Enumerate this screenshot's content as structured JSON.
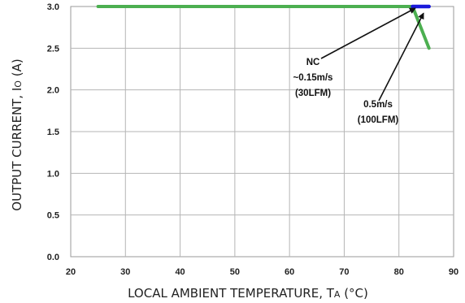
{
  "chart_data": {
    "type": "line",
    "xlabel_main": "LOCAL AMBIENT TEMPERATURE, T",
    "xlabel_sub": "A",
    "xlabel_unit": " (°C)",
    "ylabel_main": "OUTPUT CURRENT, I",
    "ylabel_sub": "O",
    "ylabel_unit": " (A)",
    "xlim": [
      20,
      90
    ],
    "ylim": [
      0,
      3.0
    ],
    "x_ticks": [
      "20",
      "30",
      "40",
      "50",
      "60",
      "70",
      "80",
      "90"
    ],
    "y_ticks": [
      "0.0",
      "0.5",
      "1.0",
      "1.5",
      "2.0",
      "2.5",
      "3.0"
    ],
    "grid": true,
    "series": [
      {
        "color": "#4caf50",
        "x": [
          25,
          82.5,
          85.5
        ],
        "y": [
          3.0,
          3.0,
          2.5
        ]
      },
      {
        "color": "#1a1adb",
        "x": [
          82.5,
          85.5
        ],
        "y": [
          3.0,
          3.0
        ]
      }
    ],
    "annotations": [
      {
        "lines": [
          "NC",
          "~0.15m/s",
          "(30LFM)"
        ],
        "arrow_to": [
          83,
          2.98
        ]
      },
      {
        "lines": [
          "0.5m/s",
          "(100LFM)"
        ],
        "arrow_to": [
          84.5,
          2.92
        ]
      }
    ]
  }
}
